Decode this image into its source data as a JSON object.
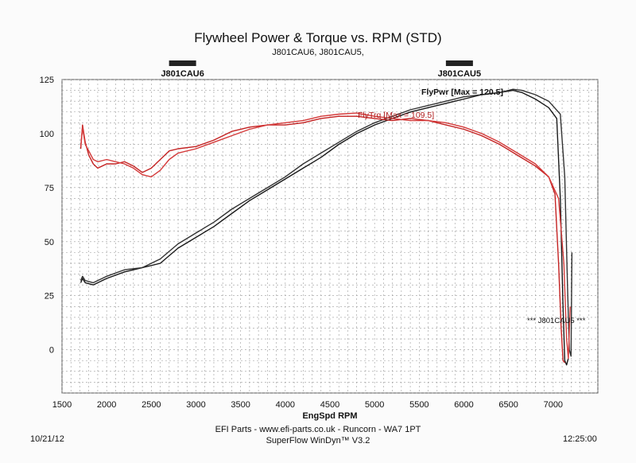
{
  "chart_data": {
    "type": "line",
    "title": "Flywheel Power & Torque vs. RPM (STD)",
    "subtitle": "J801CAU6, J801CAU5,",
    "xlabel": "EngSpd RPM",
    "ylabel": "",
    "xlim": [
      1500,
      7500
    ],
    "ylim": [
      -20,
      125
    ],
    "xticks": [
      1500,
      2000,
      2500,
      3000,
      3500,
      4000,
      4500,
      5000,
      5500,
      6000,
      6500,
      7000
    ],
    "yticks": [
      0,
      25,
      50,
      75,
      100,
      125
    ],
    "run_markers": [
      {
        "label": "J801CAU6",
        "rpm": 2850
      },
      {
        "label": "J801CAU5",
        "rpm": 5950
      }
    ],
    "annotations": {
      "power_max": "FlyPwr [Max = 120.5]",
      "torque_max": "FlyTrq [Max = 109.5]",
      "run_end": "*** J801CAU5 ***"
    },
    "series": [
      {
        "name": "FlyPwr J801CAU6",
        "color": "#1a1a1a",
        "x": [
          1710,
          1730,
          1760,
          1850,
          2000,
          2200,
          2400,
          2600,
          2800,
          3000,
          3200,
          3400,
          3600,
          3800,
          4000,
          4200,
          4400,
          4600,
          4800,
          5000,
          5200,
          5400,
          5600,
          5800,
          6000,
          6200,
          6400,
          6550,
          6650,
          6800,
          6950,
          7040,
          7080,
          7110,
          7130,
          7150,
          7170
        ],
        "y": [
          31,
          33,
          31,
          30,
          33,
          36,
          38,
          40,
          47,
          52,
          57,
          63,
          69,
          74,
          79,
          84,
          89,
          95,
          100,
          104,
          107,
          110,
          112,
          114,
          116,
          118,
          119,
          120,
          119,
          116,
          112,
          107,
          70,
          20,
          -5,
          -7,
          -4
        ]
      },
      {
        "name": "FlyPwr J801CAU5",
        "color": "#333333",
        "x": [
          1710,
          1730,
          1760,
          1850,
          2000,
          2200,
          2400,
          2600,
          2800,
          3000,
          3200,
          3400,
          3600,
          3800,
          4000,
          4200,
          4400,
          4600,
          4800,
          5000,
          5200,
          5400,
          5600,
          5800,
          6000,
          6200,
          6400,
          6550,
          6650,
          6800,
          6950,
          7080,
          7130,
          7160,
          7180,
          7200,
          7210
        ],
        "y": [
          32,
          34,
          32,
          31,
          34,
          37,
          38,
          42,
          49,
          54,
          59,
          65,
          70,
          75,
          80,
          86,
          91,
          96,
          101,
          105,
          108,
          111,
          113,
          115,
          117,
          118,
          119,
          120.5,
          120,
          118,
          115,
          109,
          80,
          30,
          0,
          -3,
          45
        ]
      },
      {
        "name": "FlyTrq J801CAU6",
        "color": "#c42222",
        "x": [
          1710,
          1730,
          1760,
          1800,
          1850,
          1900,
          2000,
          2100,
          2200,
          2300,
          2400,
          2500,
          2600,
          2700,
          2800,
          3000,
          3200,
          3400,
          3600,
          3800,
          4000,
          4200,
          4400,
          4600,
          4800,
          5000,
          5200,
          5400,
          5600,
          5800,
          6000,
          6200,
          6400,
          6600,
          6800,
          6950,
          7020,
          7060,
          7090,
          7110,
          7130
        ],
        "y": [
          93,
          104,
          96,
          90,
          86,
          84,
          86,
          86,
          87,
          85,
          82,
          84,
          88,
          92,
          93,
          94,
          97,
          101,
          103,
          104,
          104,
          105,
          107,
          108,
          108,
          107,
          106,
          107,
          106,
          104,
          102,
          99,
          95,
          90,
          85,
          80,
          72,
          40,
          10,
          -5,
          -6
        ]
      },
      {
        "name": "FlyTrq J801CAU5",
        "color": "#d43a3a",
        "x": [
          1710,
          1730,
          1760,
          1800,
          1850,
          1900,
          2000,
          2100,
          2200,
          2300,
          2400,
          2500,
          2600,
          2700,
          2800,
          3000,
          3200,
          3400,
          3600,
          3800,
          4000,
          4200,
          4400,
          4600,
          4800,
          5000,
          5200,
          5400,
          5600,
          5800,
          6000,
          6200,
          6400,
          6600,
          6800,
          6950,
          7060,
          7120,
          7150,
          7170,
          7190
        ],
        "y": [
          94,
          103,
          95,
          92,
          88,
          87,
          88,
          87,
          86,
          84,
          81,
          80,
          83,
          88,
          91,
          93,
          96,
          99,
          102,
          104,
          105,
          106,
          108,
          109,
          109.5,
          108,
          107,
          106,
          106,
          105,
          103,
          100,
          96,
          91,
          86,
          80,
          70,
          40,
          5,
          -4,
          20
        ]
      }
    ]
  },
  "footer": {
    "line1": "EFI Parts - www.efi-parts.co.uk - Runcorn - WA7 1PT",
    "line2": "SuperFlow WinDyn™ V3.2",
    "date": "10/21/12",
    "time": "12:25:00"
  }
}
